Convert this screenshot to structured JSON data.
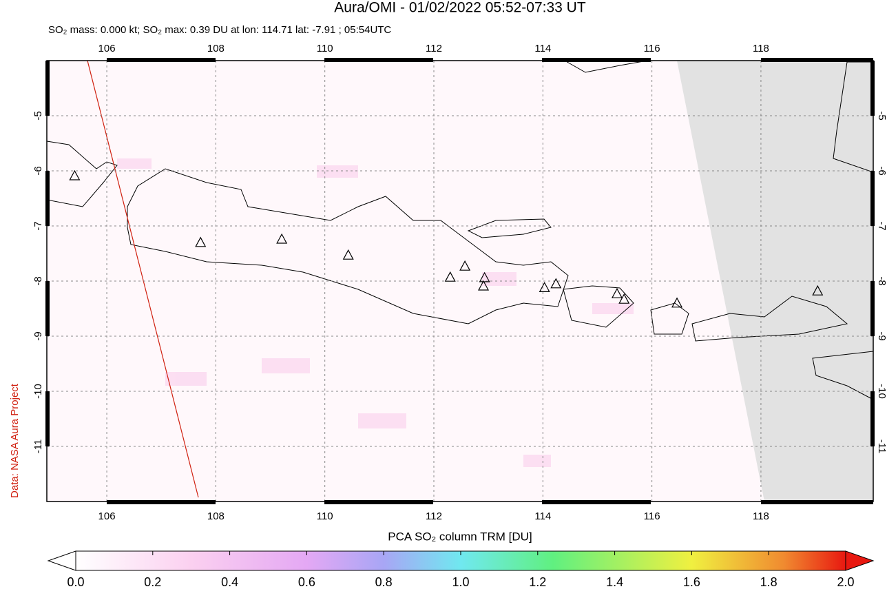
{
  "title": "Aura/OMI - 01/02/2022 05:52-07:33 UT",
  "subtitle": "SO₂ mass: 0.000 kt; SO₂ max: 0.39 DU at lon: 114.71 lat: -7.91 ; 05:54UTC",
  "credit": "Data: NASA Aura Project",
  "map": {
    "xlim": [
      104.9,
      120.06
    ],
    "ylim": [
      -12,
      -4
    ],
    "xticks": [
      106,
      108,
      110,
      112,
      114,
      116,
      118
    ],
    "yticks": [
      -5,
      -6,
      -7,
      -8,
      -9,
      -10,
      -11
    ],
    "volcanoes": [
      [
        105.41,
        -6.1
      ],
      [
        107.72,
        -7.31
      ],
      [
        109.21,
        -7.25
      ],
      [
        110.43,
        -7.54
      ],
      [
        112.3,
        -7.94
      ],
      [
        112.57,
        -7.74
      ],
      [
        112.93,
        -7.95
      ],
      [
        112.91,
        -8.1
      ],
      [
        114.03,
        -8.13
      ],
      [
        114.24,
        -8.06
      ],
      [
        115.36,
        -8.24
      ],
      [
        115.49,
        -8.34
      ],
      [
        116.46,
        -8.41
      ],
      [
        119.04,
        -8.19
      ]
    ]
  },
  "colorbar": {
    "label": "PCA SO₂ column TRM [DU]",
    "lim": [
      0,
      2
    ],
    "ticks": [
      {
        "value": 0,
        "label": "0.0"
      },
      0.2,
      0.4,
      0.6,
      0.8,
      {
        "value": 1,
        "label": "1.0"
      },
      1.2,
      1.4,
      1.6,
      1.8,
      {
        "value": 2,
        "label": "2.0"
      }
    ]
  }
}
